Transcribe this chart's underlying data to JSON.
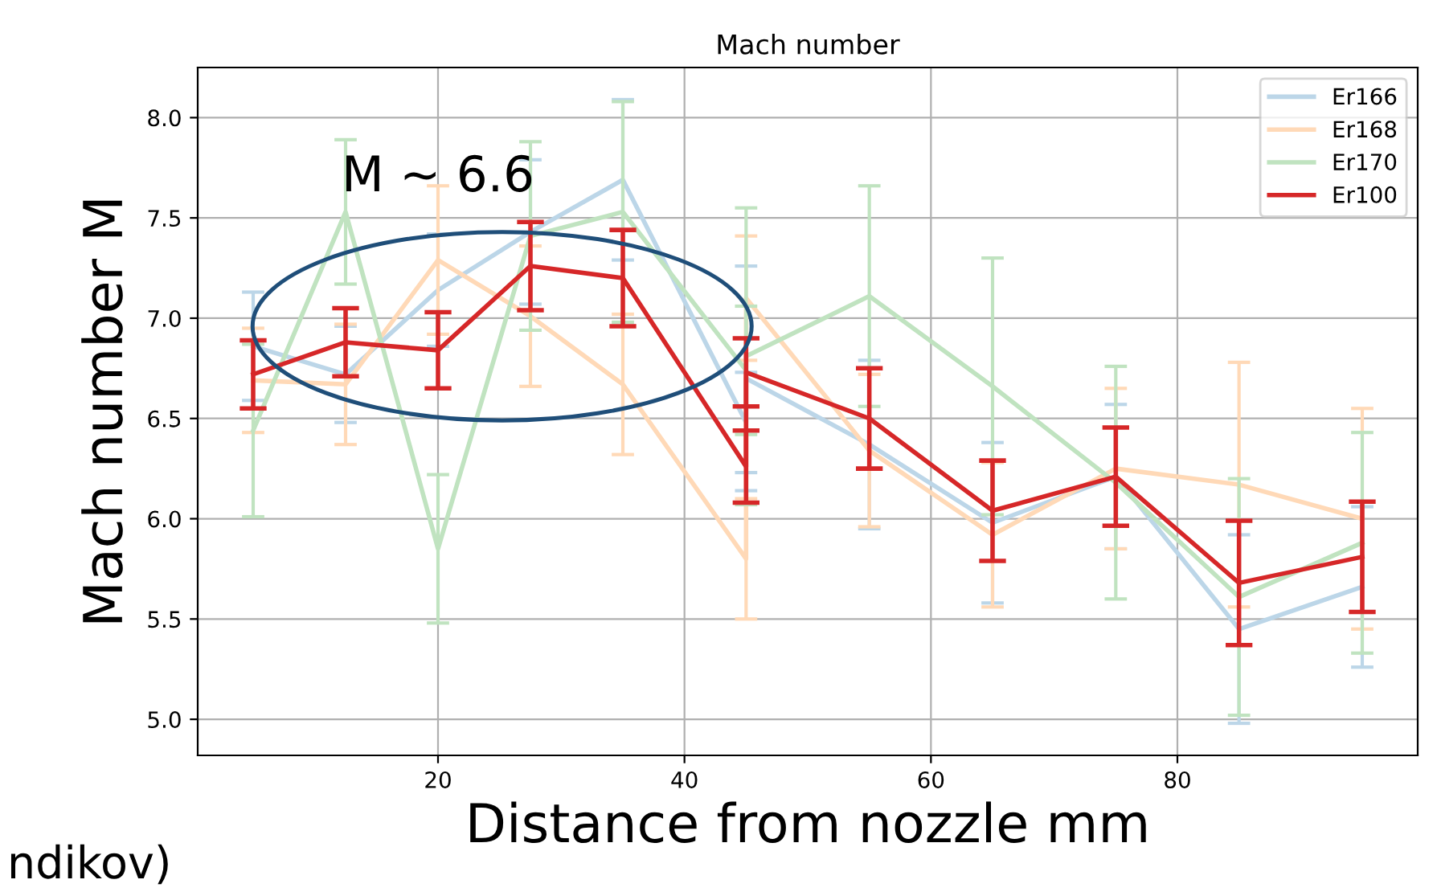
{
  "chart_data": {
    "type": "line",
    "title": "Mach number",
    "xlabel": "Distance from nozzle mm",
    "ylabel": "Mach number M",
    "x": [
      5,
      12.5,
      20,
      27.5,
      35,
      45,
      45,
      55,
      65,
      75,
      85,
      95
    ],
    "series": [
      {
        "name": "Er166",
        "color": "#bcd6e8",
        "values": [
          6.86,
          6.72,
          7.14,
          7.43,
          7.69,
          6.48,
          6.7,
          6.37,
          5.98,
          6.21,
          5.45,
          5.66
        ],
        "errors": [
          0.27,
          0.24,
          0.28,
          0.36,
          0.4,
          0.25,
          0.56,
          0.42,
          0.4,
          0.36,
          0.47,
          0.4
        ]
      },
      {
        "name": "Er168",
        "color": "#ffd9b7",
        "values": [
          6.69,
          6.67,
          7.29,
          7.01,
          6.67,
          5.8,
          7.1,
          6.34,
          5.92,
          6.25,
          6.17,
          6.0
        ],
        "errors": [
          0.26,
          0.3,
          0.37,
          0.35,
          0.35,
          0.3,
          0.31,
          0.38,
          0.36,
          0.4,
          0.61,
          0.55
        ]
      },
      {
        "name": "Er170",
        "color": "#c0e3c0",
        "values": [
          6.44,
          7.53,
          5.85,
          7.41,
          7.53,
          6.74,
          6.81,
          7.11,
          6.66,
          6.18,
          5.61,
          5.88
        ],
        "errors": [
          0.43,
          0.36,
          0.37,
          0.47,
          0.55,
          0.32,
          0.74,
          0.55,
          0.64,
          0.58,
          0.59,
          0.55
        ]
      },
      {
        "name": "Er100",
        "color": "#d62728",
        "values": [
          6.72,
          6.88,
          6.84,
          7.26,
          7.2,
          6.26,
          6.73,
          6.5,
          6.04,
          6.21,
          5.68,
          5.81
        ],
        "errors": [
          0.17,
          0.17,
          0.19,
          0.22,
          0.24,
          0.18,
          0.17,
          0.25,
          0.25,
          0.245,
          0.31,
          0.275
        ]
      }
    ],
    "xlim": [
      0.5,
      99.5
    ],
    "xticks": [
      20,
      40,
      60,
      80
    ],
    "ylim": [
      4.82,
      8.25
    ],
    "yticks": [
      {
        "value": 5,
        "label": "5.0"
      },
      {
        "value": 5.5,
        "label": "5.5"
      },
      {
        "value": 6,
        "label": "6.0"
      },
      {
        "value": 6.5,
        "label": "6.5"
      },
      {
        "value": 7,
        "label": "7.0"
      },
      {
        "value": 7.5,
        "label": "7.5"
      },
      {
        "value": 8,
        "label": "8.0"
      }
    ],
    "grid": true,
    "legend": "top right",
    "marker": "none",
    "line_style": "solid",
    "annotations": [
      {
        "text": "M ~ 6.6",
        "x": 20,
        "y": 7.7
      },
      "ndikov)"
    ]
  }
}
